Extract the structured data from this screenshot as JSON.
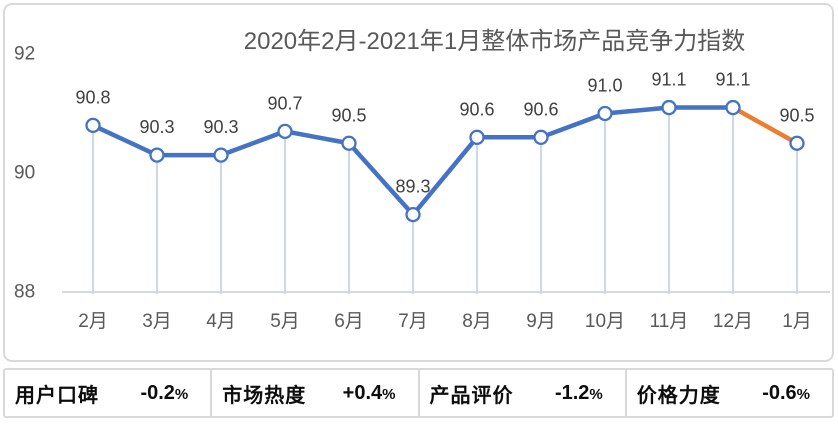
{
  "chart_data": {
    "type": "line",
    "title": "2020年2月-2021年1月整体市场产品竞争力指数",
    "categories": [
      "2月",
      "3月",
      "4月",
      "5月",
      "6月",
      "7月",
      "8月",
      "9月",
      "10月",
      "11月",
      "12月",
      "1月"
    ],
    "values": [
      90.8,
      90.3,
      90.3,
      90.7,
      90.5,
      89.3,
      90.6,
      90.6,
      91.0,
      91.1,
      91.1,
      90.5
    ],
    "value_labels": [
      "90.8",
      "90.3",
      "90.3",
      "90.7",
      "90.5",
      "89.3",
      "90.6",
      "90.6",
      "91.0",
      "91.1",
      "91.1",
      "90.5"
    ],
    "y_ticks": [
      "88",
      "90",
      "92"
    ],
    "ylim": [
      88,
      92
    ],
    "grid": false,
    "legend": "none",
    "styles": {
      "line_color": "#4472C4",
      "last_segment_color": "#ED7D31",
      "marker_fill": "#FFFFFF",
      "dropline_color": "#CBD9EF",
      "axis_line_color": "#D9D9D9",
      "data_label_color": "#404040",
      "tick_label_color": "#595959",
      "title_color": "#595959"
    }
  },
  "stats": {
    "items": [
      {
        "label": "用户口碑",
        "value": "-0.2",
        "unit": "%"
      },
      {
        "label": "市场热度",
        "value": "+0.4",
        "unit": "%"
      },
      {
        "label": "产品评价",
        "value": "-1.2",
        "unit": "%"
      },
      {
        "label": "价格力度",
        "value": "-0.6",
        "unit": "%"
      }
    ]
  }
}
